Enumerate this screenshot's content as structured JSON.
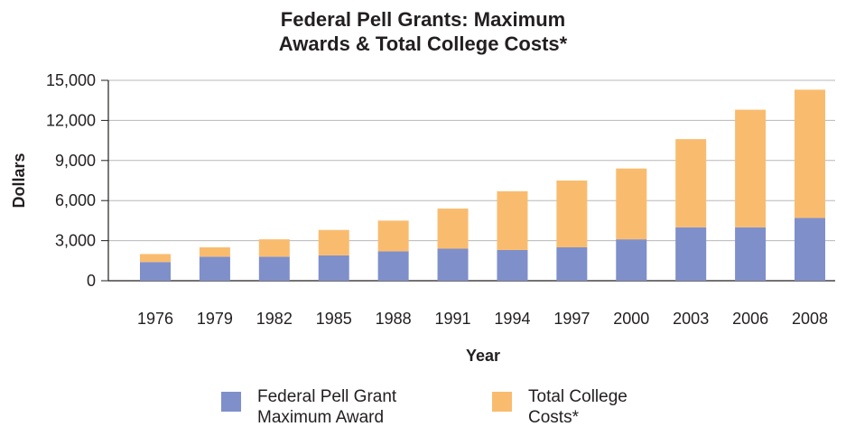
{
  "chart_data": {
    "type": "bar",
    "stacked": true,
    "title_lines": [
      "Federal Pell Grants: Maximum",
      "Awards & Total College Costs*"
    ],
    "xlabel": "Year",
    "ylabel": "Dollars",
    "ylim": [
      0,
      15000
    ],
    "yticks": [
      "0",
      "3,000",
      "6,000",
      "9,000",
      "12,000",
      "15,000"
    ],
    "ytick_values": [
      0,
      3000,
      6000,
      9000,
      12000,
      15000
    ],
    "grid": true,
    "categories": [
      "1976",
      "1979",
      "1982",
      "1985",
      "1988",
      "1991",
      "1994",
      "1997",
      "2000",
      "2003",
      "2006",
      "2008"
    ],
    "series": [
      {
        "name": "Federal Pell Grant Maximum Award",
        "color": "#7f8fca",
        "values": [
          1400,
          1800,
          1800,
          1900,
          2200,
          2400,
          2300,
          2500,
          3100,
          4000,
          4000,
          4700
        ]
      },
      {
        "name": "Total College Costs*",
        "color": "#f9bc6f",
        "values": [
          600,
          700,
          1300,
          1900,
          2300,
          3000,
          4400,
          5000,
          5300,
          6600,
          8800,
          9600
        ]
      }
    ],
    "legend": {
      "placement": "bottom",
      "items": [
        {
          "label_lines": [
            "Federal Pell Grant",
            "Maximum Award"
          ],
          "color": "#7f8fca"
        },
        {
          "label_lines": [
            "Total College",
            "Costs*"
          ],
          "color": "#f9bc6f"
        }
      ]
    }
  }
}
